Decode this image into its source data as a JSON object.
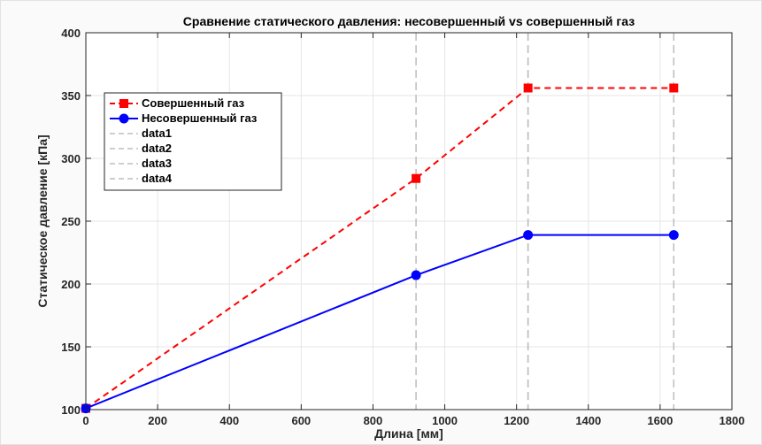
{
  "chart_data": {
    "type": "line",
    "title": "Сравнение статического давления: несовершенный vs совершенный газ",
    "xlabel": "Длина [мм]",
    "ylabel": "Статическое давление [кПа]",
    "xlim": [
      0,
      1800
    ],
    "ylim": [
      100,
      400
    ],
    "xticks": [
      0,
      200,
      400,
      600,
      800,
      1000,
      1200,
      1400,
      1600,
      1800
    ],
    "yticks": [
      100,
      150,
      200,
      250,
      300,
      350,
      400
    ],
    "grid": true,
    "legend_position": "top-left",
    "series": [
      {
        "name": "Совершенный газ",
        "color": "#ff0000",
        "line_style": "dashed",
        "marker": "square",
        "x": [
          0,
          920,
          1232,
          1638
        ],
        "y": [
          101,
          284,
          356,
          356
        ]
      },
      {
        "name": "Несовершенный газ",
        "color": "#0000ff",
        "line_style": "solid",
        "marker": "circle",
        "x": [
          0,
          920,
          1232,
          1638
        ],
        "y": [
          101,
          207,
          239,
          239
        ]
      }
    ],
    "vertical_lines": [
      {
        "name": "data1",
        "x": 920,
        "color": "#bdbdbd"
      },
      {
        "name": "data2",
        "x": 1232,
        "color": "#bdbdbd"
      },
      {
        "name": "data3",
        "x": 1232,
        "color": "#bdbdbd"
      },
      {
        "name": "data4",
        "x": 1638,
        "color": "#bdbdbd"
      }
    ]
  }
}
